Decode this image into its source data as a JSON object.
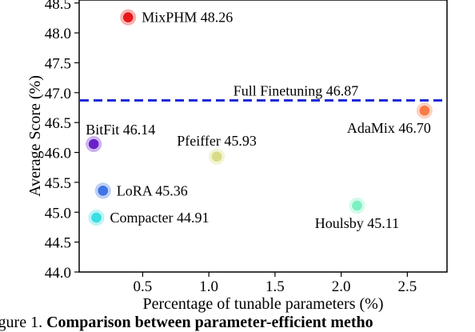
{
  "chart_data": {
    "type": "scatter",
    "xlabel": "Percentage of tunable parameters (%)",
    "ylabel": "Average Score (%)",
    "xlim": [
      0.02,
      2.8
    ],
    "ylim": [
      44.0,
      48.55
    ],
    "xticks": [
      0.5,
      1.0,
      1.5,
      2.0,
      2.5
    ],
    "xtick_labels": [
      "0.5",
      "1.0",
      "1.5",
      "2.0",
      "2.5"
    ],
    "yticks": [
      44.0,
      44.5,
      45.0,
      45.5,
      46.0,
      46.5,
      47.0,
      47.5,
      48.0,
      48.5
    ],
    "ytick_labels": [
      "44.0",
      "44.5",
      "45.0",
      "45.5",
      "46.0",
      "46.5",
      "47.0",
      "47.5",
      "48.0",
      "48.5"
    ],
    "grid": false,
    "points": [
      {
        "label": "MixPHM 48.26",
        "x": 0.39,
        "y": 48.26,
        "color": "#e8191a",
        "label_pos": "right"
      },
      {
        "label": "AdaMix 46.70",
        "x": 2.63,
        "y": 46.7,
        "color": "#f97c48",
        "label_pos": "below-left"
      },
      {
        "label": "BitFit 46.14",
        "x": 0.13,
        "y": 46.14,
        "color": "#6a20c9",
        "label_pos": "above-right"
      },
      {
        "label": "Pfeiffer 45.93",
        "x": 1.06,
        "y": 45.93,
        "color": "#d9dc86",
        "label_pos": "above"
      },
      {
        "label": "LoRA 45.36",
        "x": 0.2,
        "y": 45.36,
        "color": "#3f74e6",
        "label_pos": "right"
      },
      {
        "label": "Houlsby 45.11",
        "x": 2.12,
        "y": 45.11,
        "color": "#7df0c2",
        "label_pos": "below"
      },
      {
        "label": "Compacter 44.91",
        "x": 0.15,
        "y": 44.91,
        "color": "#39dfe3",
        "label_pos": "right"
      }
    ],
    "reference_line": {
      "label": "Full Finetuning 46.87",
      "y": 46.87,
      "color": "#1f2bd6",
      "style": "dashed"
    }
  },
  "caption": {
    "prefix": "igure 1.",
    "bold": "Comparison between parameter-efficient metho"
  }
}
